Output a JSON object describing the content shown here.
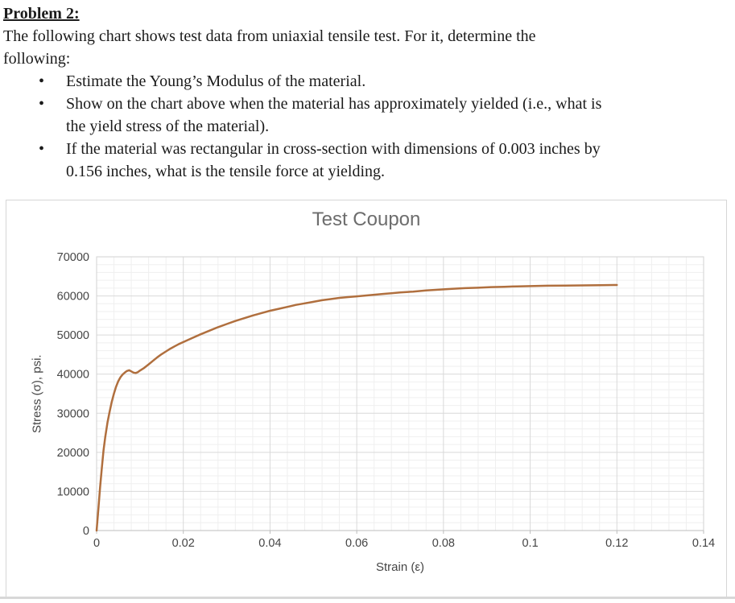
{
  "document": {
    "heading": "Problem 2:",
    "bullet_char": "•",
    "intro_lines": [
      "The following chart shows test data from uniaxial tensile test. For it, determine the",
      "following:"
    ],
    "bullets": [
      {
        "lines": [
          "Estimate the Young’s Modulus of the material."
        ]
      },
      {
        "lines": [
          "Show on the chart above when the material has approximately yielded (i.e., what is",
          "the yield stress of the material)."
        ]
      },
      {
        "lines": [
          "If the material was rectangular in cross-section with dimensions of 0.003 inches by",
          "0.156 inches, what is the tensile force at yielding."
        ]
      }
    ]
  },
  "chart_data": {
    "type": "line",
    "title": "Test Coupon",
    "xlabel": "Strain (ε)",
    "ylabel": "Stress (σ), psi.",
    "xlim": [
      0,
      0.14
    ],
    "ylim": [
      0,
      70000
    ],
    "x_major_step": 0.02,
    "y_major_step": 10000,
    "x_minor_step": 0.004,
    "y_minor_step": 2000,
    "x_tick_labels": [
      "0",
      "0.02",
      "0.04",
      "0.06",
      "0.08",
      "0.1",
      "0.12",
      "0.14"
    ],
    "y_tick_labels": [
      "0",
      "10000",
      "20000",
      "30000",
      "40000",
      "50000",
      "60000",
      "70000"
    ],
    "grid": "major and minor, both axes",
    "legend_position": "none",
    "series": [
      {
        "name": "Test Coupon",
        "color": "#b06f3e",
        "points": [
          [
            0,
            0
          ],
          [
            0.0004,
            5500
          ],
          [
            0.0008,
            11000
          ],
          [
            0.0012,
            16000
          ],
          [
            0.0016,
            20500
          ],
          [
            0.002,
            24000
          ],
          [
            0.0025,
            27600
          ],
          [
            0.003,
            30400
          ],
          [
            0.0035,
            32900
          ],
          [
            0.004,
            35000
          ],
          [
            0.0045,
            36800
          ],
          [
            0.005,
            38200
          ],
          [
            0.0055,
            39200
          ],
          [
            0.006,
            39900
          ],
          [
            0.0065,
            40400
          ],
          [
            0.007,
            40800
          ],
          [
            0.0075,
            41000
          ],
          [
            0.008,
            40700
          ],
          [
            0.0085,
            40400
          ],
          [
            0.009,
            40300
          ],
          [
            0.0095,
            40500
          ],
          [
            0.01,
            40900
          ],
          [
            0.011,
            41600
          ],
          [
            0.012,
            42500
          ],
          [
            0.013,
            43400
          ],
          [
            0.014,
            44300
          ],
          [
            0.015,
            45100
          ],
          [
            0.016,
            45800
          ],
          [
            0.017,
            46500
          ],
          [
            0.018,
            47100
          ],
          [
            0.019,
            47700
          ],
          [
            0.02,
            48200
          ],
          [
            0.022,
            49200
          ],
          [
            0.024,
            50200
          ],
          [
            0.026,
            51100
          ],
          [
            0.028,
            52000
          ],
          [
            0.03,
            52800
          ],
          [
            0.032,
            53600
          ],
          [
            0.034,
            54300
          ],
          [
            0.036,
            55000
          ],
          [
            0.038,
            55600
          ],
          [
            0.04,
            56200
          ],
          [
            0.042,
            56700
          ],
          [
            0.044,
            57200
          ],
          [
            0.046,
            57700
          ],
          [
            0.048,
            58100
          ],
          [
            0.05,
            58500
          ],
          [
            0.052,
            58900
          ],
          [
            0.054,
            59200
          ],
          [
            0.056,
            59500
          ],
          [
            0.058,
            59700
          ],
          [
            0.06,
            59900
          ],
          [
            0.062,
            60100
          ],
          [
            0.064,
            60300
          ],
          [
            0.066,
            60500
          ],
          [
            0.068,
            60700
          ],
          [
            0.07,
            60900
          ],
          [
            0.073,
            61100
          ],
          [
            0.076,
            61400
          ],
          [
            0.079,
            61600
          ],
          [
            0.082,
            61800
          ],
          [
            0.085,
            62000
          ],
          [
            0.088,
            62100
          ],
          [
            0.091,
            62250
          ],
          [
            0.094,
            62350
          ],
          [
            0.097,
            62450
          ],
          [
            0.1,
            62500
          ],
          [
            0.104,
            62600
          ],
          [
            0.108,
            62650
          ],
          [
            0.112,
            62700
          ],
          [
            0.116,
            62750
          ],
          [
            0.12,
            62800
          ]
        ]
      }
    ],
    "yield_stress_psi": 40800,
    "ultimate_stress_psi": 62800,
    "strain_at_end": 0.12
  },
  "colors": {
    "major_gridline": "#d9d9d9",
    "minor_gridline": "#efefef",
    "plot_border": "#d2d2d2",
    "axis_line": "#bdbdbd",
    "tick_mark": "#bdbdbd",
    "tick_label": "#454545",
    "chart_title": "#6d6d6d",
    "series_line": "#b06f3e"
  }
}
